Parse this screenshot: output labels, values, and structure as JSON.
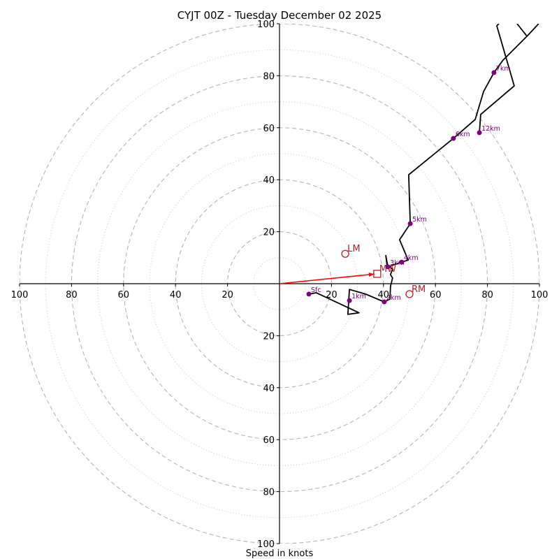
{
  "chart_data": {
    "type": "line",
    "subtype": "hodograph",
    "title": "CYJT 00Z - Tuesday December 02 2025",
    "xlabel": "Speed in knots",
    "ylabel": "",
    "units": "knots",
    "xlim": [
      -100,
      100
    ],
    "ylim": [
      -100,
      100
    ],
    "grid": true,
    "rings": {
      "major": [
        20,
        40,
        60,
        80,
        100
      ],
      "minor": [
        10,
        30,
        50,
        70,
        90
      ]
    },
    "x_ticks": [
      {
        "value": -100,
        "label": "100"
      },
      {
        "value": -80,
        "label": "80"
      },
      {
        "value": -60,
        "label": "60"
      },
      {
        "value": -40,
        "label": "40"
      },
      {
        "value": -20,
        "label": "20"
      },
      {
        "value": 20,
        "label": "20"
      },
      {
        "value": 40,
        "label": "40"
      },
      {
        "value": 60,
        "label": "60"
      },
      {
        "value": 80,
        "label": "80"
      },
      {
        "value": 100,
        "label": "100"
      }
    ],
    "y_ticks": [
      {
        "value": 100,
        "label": "100"
      },
      {
        "value": 80,
        "label": "80"
      },
      {
        "value": 60,
        "label": "60"
      },
      {
        "value": 40,
        "label": "40"
      },
      {
        "value": 20,
        "label": "20"
      },
      {
        "value": -20,
        "label": "20"
      },
      {
        "value": -40,
        "label": "40"
      },
      {
        "value": -60,
        "label": "60"
      },
      {
        "value": -80,
        "label": "80"
      },
      {
        "value": -100,
        "label": "100"
      }
    ],
    "series": [
      {
        "name": "wind-profile",
        "color": "#000000",
        "points": [
          [
            11.3,
            -4.0
          ],
          [
            14.2,
            -3.5
          ],
          [
            30.6,
            -11.2
          ],
          [
            26.3,
            -11.8
          ],
          [
            26.9,
            -2.2
          ],
          [
            33.1,
            -4.0
          ],
          [
            40.3,
            -7.0
          ],
          [
            42.5,
            -5.9
          ],
          [
            42.7,
            -1.1
          ],
          [
            43.5,
            2.2
          ],
          [
            42.7,
            3.5
          ],
          [
            43.5,
            5.6
          ],
          [
            42.2,
            6.7
          ],
          [
            41.4,
            6.9
          ],
          [
            40.9,
            10.8
          ],
          [
            41.7,
            6.5
          ],
          [
            47.0,
            8.3
          ],
          [
            49.5,
            9.1
          ],
          [
            46.2,
            16.9
          ],
          [
            50.3,
            23.1
          ],
          [
            49.7,
            41.9
          ],
          [
            66.9,
            55.9
          ],
          [
            75.3,
            63.2
          ],
          [
            78.5,
            73.9
          ],
          [
            82.5,
            81.2
          ],
          [
            86.0,
            86.0
          ],
          [
            95.2,
            95.2
          ],
          [
            99.7,
            100.0
          ]
        ]
      },
      {
        "name": "wind-profile-upper-branch",
        "color": "#000000",
        "points": [
          [
            95.2,
            95.2
          ],
          [
            91.4,
            100.0
          ]
        ]
      },
      {
        "name": "wind-profile-upper-return",
        "color": "#000000",
        "points": [
          [
            84.4,
            100.0
          ],
          [
            83.6,
            99.2
          ],
          [
            90.3,
            76.1
          ],
          [
            77.4,
            65.1
          ],
          [
            76.9,
            58.1
          ]
        ]
      }
    ],
    "height_markers": [
      {
        "label": "Sfc",
        "u": 11.3,
        "v": -4.0
      },
      {
        "label": "1km",
        "u": 26.9,
        "v": -6.5
      },
      {
        "label": "2km",
        "u": 40.3,
        "v": -7.0
      },
      {
        "label": "3km",
        "u": 41.7,
        "v": 6.5
      },
      {
        "label": "4km",
        "u": 47.0,
        "v": 8.3
      },
      {
        "label": "5km",
        "u": 50.3,
        "v": 23.1
      },
      {
        "label": "6km",
        "u": 66.9,
        "v": 55.9
      },
      {
        "label": "7km",
        "u": 82.5,
        "v": 81.2
      },
      {
        "label": "12km",
        "u": 76.9,
        "v": 58.1
      }
    ],
    "marker_color": "#800080",
    "storm_motion": [
      {
        "label": "LM",
        "u": 25.3,
        "v": 11.5,
        "shape": "circle"
      },
      {
        "label": "RM",
        "u": 50.0,
        "v": -4.0,
        "shape": "circle"
      },
      {
        "label": "MW",
        "u": 37.6,
        "v": 3.8,
        "shape": "square"
      }
    ],
    "storm_color": "#b22222",
    "mean_wind_vector": {
      "from": [
        0,
        0
      ],
      "to": [
        37.6,
        3.8
      ],
      "color": "#ff0000"
    }
  }
}
